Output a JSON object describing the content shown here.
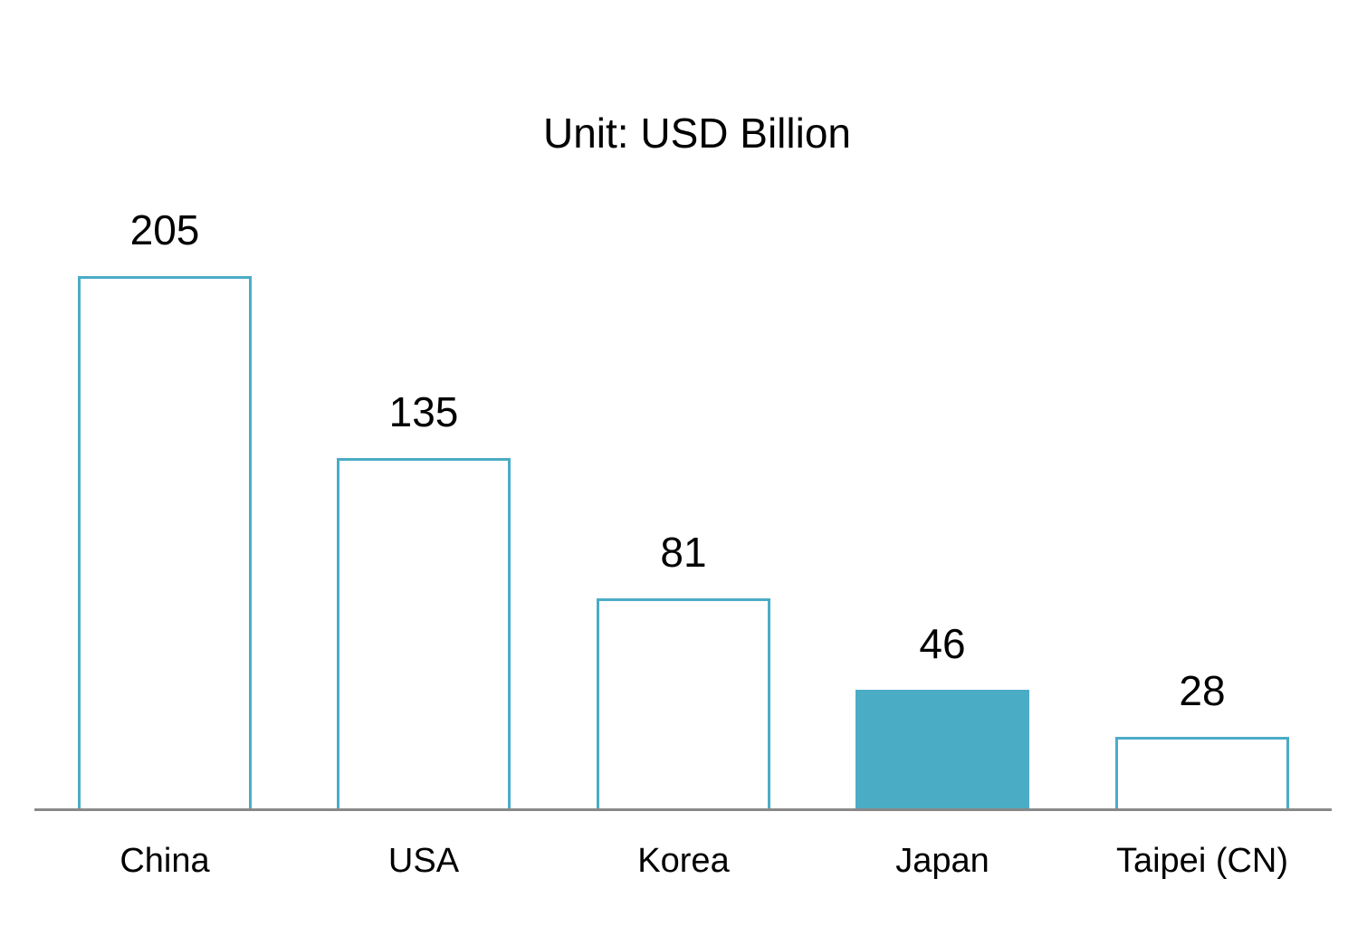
{
  "chart_data": {
    "type": "bar",
    "title": "Unit: USD Billion",
    "xlabel": "",
    "ylabel": "",
    "categories": [
      "China",
      "USA",
      "Korea",
      "Japan",
      "Taipei (CN)"
    ],
    "values": [
      205,
      135,
      81,
      46,
      28
    ],
    "highlighted": "Japan",
    "data_labels": [
      "205",
      "135",
      "81",
      "46",
      "28"
    ],
    "grid": false,
    "legend": null,
    "ylim": [
      0,
      205
    ],
    "colors": {
      "bar_outline": "#4BACC6",
      "highlight_fill": "#4BACC6",
      "axis": "#898989"
    }
  }
}
